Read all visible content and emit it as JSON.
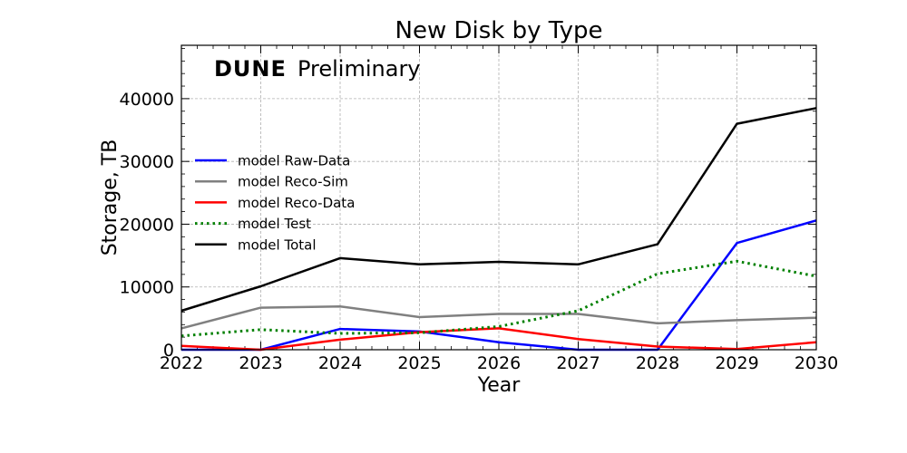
{
  "chart_data": {
    "type": "line",
    "title": "New Disk by Type",
    "watermark": {
      "bold": "DUNE",
      "normal": "Preliminary"
    },
    "xlabel": "Year",
    "ylabel": "Storage, TB",
    "xlim": [
      2022,
      2030
    ],
    "ylim": [
      0,
      48500
    ],
    "xticks": [
      2022,
      2023,
      2024,
      2025,
      2026,
      2027,
      2028,
      2029,
      2030
    ],
    "yticks": [
      0,
      10000,
      20000,
      30000,
      40000
    ],
    "grid": true,
    "legend_position": "left",
    "x": [
      2022,
      2023,
      2024,
      2025,
      2026,
      2027,
      2028,
      2029,
      2030
    ],
    "series": [
      {
        "name": "model Raw-Data",
        "color": "#0000ff",
        "style": "solid",
        "values": [
          0,
          0,
          3300,
          2900,
          1200,
          0,
          0,
          17000,
          20600
        ]
      },
      {
        "name": "model Reco-Sim",
        "color": "#808080",
        "style": "solid",
        "values": [
          3400,
          6700,
          6900,
          5200,
          5700,
          5700,
          4200,
          4700,
          5100
        ]
      },
      {
        "name": "model Reco-Data",
        "color": "#ff0000",
        "style": "solid",
        "values": [
          600,
          0,
          1600,
          2800,
          3400,
          1700,
          500,
          100,
          1200
        ]
      },
      {
        "name": "model Test",
        "color": "#008000",
        "style": "dotted",
        "values": [
          2200,
          3200,
          2600,
          2700,
          3700,
          6200,
          12100,
          14100,
          11700
        ]
      },
      {
        "name": "model Total",
        "color": "#000000",
        "style": "solid",
        "values": [
          6200,
          10100,
          14600,
          13600,
          14000,
          13600,
          16800,
          36000,
          38500
        ]
      }
    ]
  }
}
